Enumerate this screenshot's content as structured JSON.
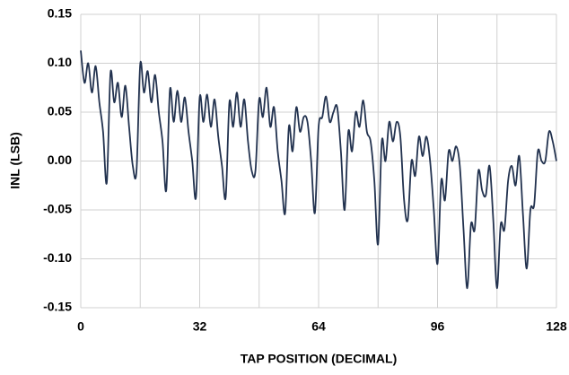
{
  "chart_data": {
    "type": "line",
    "x_label": "TAP POSITION (DECIMAL)",
    "y_label": "INL (LSB)",
    "xlim": [
      0,
      128
    ],
    "xticks": [
      0,
      32,
      64,
      96,
      128
    ],
    "xminorticks": [
      16,
      48,
      80,
      112
    ],
    "ylim": [
      -0.15,
      0.15
    ],
    "yticks": [
      0.15,
      {
        "value": 0.1,
        "label": "0.10"
      },
      0.05,
      {
        "value": 0,
        "label": "0.00"
      },
      -0.05,
      {
        "value": -0.1,
        "label": "-0.10"
      },
      -0.15
    ],
    "grid": true,
    "series": [
      {
        "color": "#22324f",
        "x": [
          0,
          1,
          2,
          3,
          4,
          5,
          6,
          7,
          8,
          9,
          10,
          11,
          12,
          13,
          14,
          15,
          16,
          17,
          18,
          19,
          20,
          21,
          22,
          23,
          24,
          25,
          26,
          27,
          28,
          29,
          30,
          31,
          32,
          33,
          34,
          35,
          36,
          37,
          38,
          39,
          40,
          41,
          42,
          43,
          44,
          45,
          46,
          47,
          48,
          49,
          50,
          51,
          52,
          53,
          54,
          55,
          56,
          57,
          58,
          59,
          60,
          61,
          62,
          63,
          64,
          65,
          66,
          67,
          68,
          69,
          70,
          71,
          72,
          73,
          74,
          75,
          76,
          77,
          78,
          79,
          80,
          81,
          82,
          83,
          84,
          85,
          86,
          87,
          88,
          89,
          90,
          91,
          92,
          93,
          94,
          95,
          96,
          97,
          98,
          99,
          100,
          101,
          102,
          103,
          104,
          105,
          106,
          107,
          108,
          109,
          110,
          111,
          112,
          113,
          114,
          115,
          116,
          117,
          118,
          119,
          120,
          121,
          122,
          123,
          124,
          125,
          126,
          127,
          128
        ],
        "values": [
          0.113,
          0.08,
          0.1,
          0.07,
          0.097,
          0.06,
          0.03,
          -0.022,
          0.09,
          0.06,
          0.08,
          0.045,
          0.077,
          0.035,
          -0.005,
          -0.01,
          0.099,
          0.07,
          0.092,
          0.06,
          0.088,
          0.05,
          0.02,
          -0.03,
          0.073,
          0.04,
          0.072,
          0.04,
          0.065,
          0.03,
          0.0,
          -0.037,
          0.065,
          0.04,
          0.068,
          0.035,
          0.063,
          0.025,
          -0.005,
          -0.037,
          0.06,
          0.035,
          0.07,
          0.035,
          0.063,
          0.02,
          -0.01,
          -0.01,
          0.063,
          0.045,
          0.075,
          0.035,
          0.055,
          0.01,
          -0.02,
          -0.053,
          0.035,
          0.01,
          0.055,
          0.03,
          0.045,
          0.04,
          0.0,
          -0.053,
          0.035,
          0.045,
          0.066,
          0.04,
          0.05,
          0.055,
          0.01,
          -0.05,
          0.03,
          0.01,
          0.05,
          0.035,
          0.062,
          0.03,
          0.02,
          -0.02,
          -0.085,
          0.02,
          0.0,
          0.04,
          0.02,
          0.04,
          0.025,
          -0.04,
          -0.06,
          0.0,
          -0.015,
          0.025,
          0.005,
          0.025,
          0.0,
          -0.05,
          -0.105,
          -0.02,
          -0.04,
          0.01,
          0.0,
          0.015,
          -0.005,
          -0.07,
          -0.13,
          -0.065,
          -0.07,
          -0.01,
          -0.03,
          -0.035,
          -0.005,
          -0.06,
          -0.13,
          -0.065,
          -0.07,
          -0.02,
          -0.005,
          -0.025,
          0.005,
          -0.055,
          -0.11,
          -0.05,
          -0.045,
          0.01,
          0.0,
          0.0,
          0.03,
          0.02,
          0.0
        ]
      }
    ]
  }
}
